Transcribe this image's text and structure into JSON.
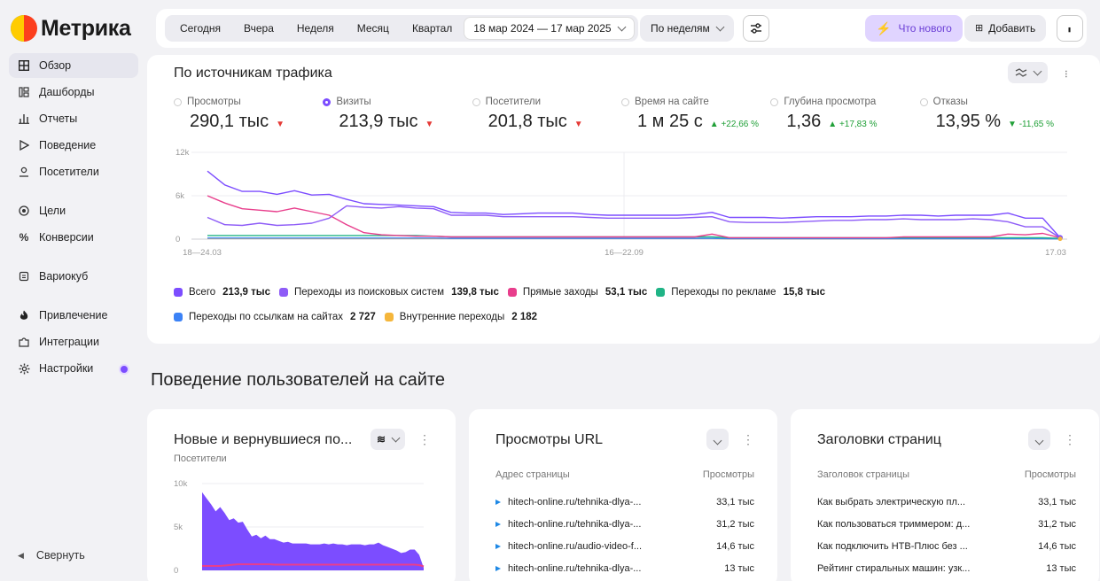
{
  "app": {
    "logo_text": "Метрика"
  },
  "sidebar": {
    "items": [
      {
        "label": "Обзор",
        "icon": "grid-icon"
      },
      {
        "label": "Дашборды",
        "icon": "dashboard-icon"
      },
      {
        "label": "Отчеты",
        "icon": "bar-chart-icon"
      },
      {
        "label": "Поведение",
        "icon": "play-icon"
      },
      {
        "label": "Посетители",
        "icon": "user-icon"
      },
      {
        "label": "Цели",
        "icon": "target-icon"
      },
      {
        "label": "Конверсии",
        "icon": "percent-icon"
      },
      {
        "label": "Вариокуб",
        "icon": "cube-icon"
      },
      {
        "label": "Привлечение",
        "icon": "flame-icon"
      },
      {
        "label": "Интеграции",
        "icon": "puzzle-icon"
      },
      {
        "label": "Настройки",
        "icon": "gear-icon"
      }
    ],
    "collapse_label": "Свернуть"
  },
  "topbar": {
    "periods": [
      "Сегодня",
      "Вчера",
      "Неделя",
      "Месяц",
      "Квартал"
    ],
    "date_range": "18 мар 2024 — 17 мар 2025",
    "grouping": "По неделям",
    "whats_new": "Что нового",
    "add": "Добавить"
  },
  "traffic": {
    "title": "По источникам трафика",
    "metrics": [
      {
        "label": "Просмотры",
        "value": "290,1 тыс",
        "trend": "down",
        "delta": ""
      },
      {
        "label": "Визиты",
        "value": "213,9 тыс",
        "trend": "down",
        "delta": "",
        "selected": true
      },
      {
        "label": "Посетители",
        "value": "201,8 тыс",
        "trend": "down",
        "delta": ""
      },
      {
        "label": "Время на сайте",
        "value": "1 м 25 с",
        "trend": "up",
        "delta": "+22,66 %"
      },
      {
        "label": "Глубина просмотра",
        "value": "1,36",
        "trend": "up",
        "delta": "+17,83 %"
      },
      {
        "label": "Отказы",
        "value": "13,95 %",
        "trend": "down-good",
        "delta": "-11,65 %"
      }
    ],
    "legend": [
      {
        "label": "Всего",
        "value": "213,9 тыс",
        "color": "#7c4dff"
      },
      {
        "label": "Переходы из поисковых систем",
        "value": "139,8 тыс",
        "color": "#8e5cf7"
      },
      {
        "label": "Прямые заходы",
        "value": "53,1 тыс",
        "color": "#e83e8c"
      },
      {
        "label": "Переходы по рекламе",
        "value": "15,8 тыс",
        "color": "#20b486"
      },
      {
        "label": "Переходы по ссылкам на сайтах",
        "value": "2 727",
        "color": "#3b82f6"
      },
      {
        "label": "Внутренние переходы",
        "value": "2 182",
        "color": "#f5b63b"
      }
    ]
  },
  "chart_data": [
    {
      "type": "line",
      "y_ticks": [
        "12k",
        "6k",
        "0"
      ],
      "x_ticks": [
        "18—24.03",
        "16—22.09",
        "17.03"
      ],
      "ylim": [
        0,
        12000
      ],
      "series": [
        {
          "name": "Всего",
          "color": "#7c4dff",
          "values": [
            9400,
            7500,
            6600,
            6600,
            6200,
            6700,
            6100,
            6200,
            5500,
            4900,
            4800,
            4700,
            4600,
            4500,
            3700,
            3600,
            3600,
            3400,
            3500,
            3600,
            3600,
            3600,
            3400,
            3300,
            3300,
            3300,
            3300,
            3300,
            3400,
            3700,
            3000,
            3000,
            3000,
            2900,
            3000,
            3100,
            3100,
            3100,
            3200,
            3200,
            3300,
            3300,
            3200,
            3300,
            3300,
            3300,
            3600,
            2900,
            2900,
            200
          ]
        },
        {
          "name": "Переходы из поисковых систем",
          "color": "#8e5cf7",
          "values": [
            3000,
            2000,
            1900,
            2200,
            1900,
            2000,
            2200,
            2900,
            4600,
            4400,
            4300,
            4500,
            4300,
            4200,
            3300,
            3300,
            3300,
            3100,
            3100,
            3100,
            3100,
            3100,
            3000,
            2900,
            2900,
            2900,
            2900,
            2900,
            3000,
            3100,
            2400,
            2300,
            2300,
            2300,
            2400,
            2500,
            2600,
            2600,
            2700,
            2700,
            2800,
            2700,
            2700,
            2700,
            2800,
            2700,
            2400,
            1700,
            1700,
            200
          ]
        },
        {
          "name": "Прямые заходы",
          "color": "#e83e8c",
          "values": [
            6000,
            5000,
            4200,
            4000,
            3800,
            4300,
            3800,
            3300,
            2000,
            900,
            600,
            500,
            400,
            400,
            300,
            300,
            300,
            300,
            300,
            300,
            300,
            300,
            300,
            300,
            300,
            300,
            300,
            300,
            300,
            700,
            200,
            200,
            200,
            200,
            200,
            200,
            200,
            200,
            200,
            200,
            300,
            300,
            300,
            300,
            300,
            300,
            700,
            600,
            800,
            200
          ]
        },
        {
          "name": "Переходы по рекламе",
          "color": "#20b486",
          "values": [
            500,
            500,
            500,
            500,
            500,
            500,
            500,
            500,
            500,
            500,
            500,
            500,
            500,
            400,
            300,
            300,
            300,
            300,
            300,
            300,
            300,
            300,
            300,
            300,
            300,
            300,
            300,
            300,
            300,
            300,
            200,
            200,
            200,
            200,
            200,
            200,
            200,
            200,
            200,
            200,
            200,
            200,
            200,
            200,
            200,
            200,
            200,
            200,
            200,
            100
          ]
        },
        {
          "name": "Переходы по ссылкам на сайтах",
          "color": "#3b82f6",
          "values": [
            150,
            150,
            150,
            150,
            150,
            150,
            150,
            150,
            150,
            150,
            150,
            150,
            150,
            150,
            100,
            100,
            100,
            100,
            100,
            100,
            100,
            100,
            100,
            100,
            100,
            100,
            100,
            100,
            100,
            100,
            50,
            50,
            50,
            50,
            50,
            50,
            50,
            50,
            50,
            50,
            50,
            50,
            50,
            50,
            50,
            50,
            50,
            50,
            50,
            20
          ]
        },
        {
          "name": "Внутренние переходы",
          "color": "#f5b63b",
          "values": [
            100,
            100,
            100,
            100,
            100,
            100,
            100,
            100,
            100,
            100,
            100,
            100,
            100,
            100,
            80,
            80,
            80,
            80,
            80,
            80,
            80,
            80,
            80,
            80,
            80,
            80,
            80,
            80,
            80,
            80,
            40,
            40,
            40,
            40,
            40,
            40,
            40,
            40,
            40,
            40,
            40,
            40,
            40,
            40,
            40,
            40,
            40,
            40,
            40,
            20
          ]
        }
      ]
    },
    {
      "type": "area",
      "y_ticks": [
        "10k",
        "5k",
        "0"
      ],
      "ylim": [
        0,
        10000
      ],
      "series": [
        {
          "name": "Посетители",
          "color": "#7c4dff",
          "values": [
            9000,
            8300,
            7600,
            6800,
            7300,
            6600,
            5800,
            6000,
            5500,
            5600,
            4700,
            3900,
            4100,
            3700,
            4000,
            3600,
            3600,
            3400,
            3200,
            3300,
            3100,
            3100,
            3100,
            3100,
            3000,
            3000,
            3000,
            3100,
            3000,
            3100,
            3000,
            3000,
            2900,
            3000,
            3000,
            3000,
            2900,
            3000,
            3000,
            3200,
            2900,
            2700,
            2500,
            2300,
            2000,
            2100,
            2400,
            2400,
            1800,
            300
          ]
        },
        {
          "name": "",
          "color": "#e83e8c",
          "values": [
            100,
            100,
            100,
            100,
            100,
            150,
            200,
            250,
            300,
            300,
            300,
            300,
            300,
            300,
            300,
            300,
            250,
            250,
            250,
            250,
            250,
            250,
            250,
            250,
            250,
            250,
            250,
            250,
            250,
            250,
            250,
            250,
            250,
            250,
            250,
            250,
            250,
            250,
            250,
            250,
            250,
            250,
            250,
            250,
            250,
            250,
            250,
            250,
            200,
            50
          ]
        }
      ]
    }
  ],
  "behavior": {
    "section_title": "Поведение пользователей на сайте",
    "new_returning": {
      "title": "Новые и вернувшиеся по...",
      "subtitle": "Посетители"
    },
    "url_views": {
      "title": "Просмотры URL",
      "col1": "Адрес страницы",
      "col2": "Просмотры",
      "rows": [
        {
          "label": "hitech-online.ru/tehnika-dlya-...",
          "value": "33,1 тыс"
        },
        {
          "label": "hitech-online.ru/tehnika-dlya-...",
          "value": "31,2 тыс"
        },
        {
          "label": "hitech-online.ru/audio-video-f...",
          "value": "14,6 тыс"
        },
        {
          "label": "hitech-online.ru/tehnika-dlya-...",
          "value": "13 тыс"
        }
      ]
    },
    "page_titles": {
      "title": "Заголовки страниц",
      "col1": "Заголовок страницы",
      "col2": "Просмотры",
      "rows": [
        {
          "label": "Как выбрать электрическую пл...",
          "value": "33,1 тыс"
        },
        {
          "label": "Как пользоваться триммером: д...",
          "value": "31,2 тыс"
        },
        {
          "label": "Как подключить НТВ-Плюс без ...",
          "value": "14,6 тыс"
        },
        {
          "label": "Рейтинг стиральных машин: узк...",
          "value": "13 тыс"
        }
      ]
    }
  }
}
